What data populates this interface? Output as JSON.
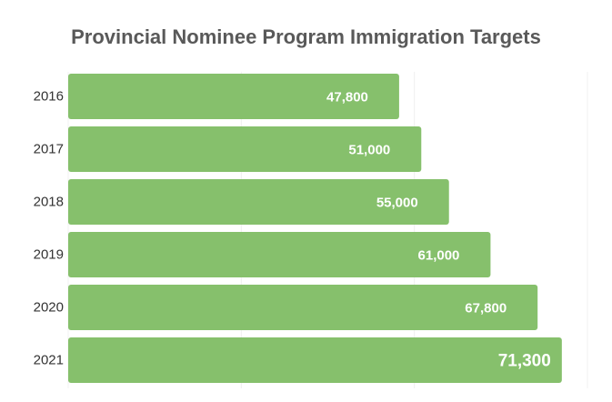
{
  "chart_data": {
    "type": "bar",
    "orientation": "horizontal",
    "title": "Provincial Nominee Program Immigration Targets",
    "categories": [
      "2016",
      "2017",
      "2018",
      "2019",
      "2020",
      "2021"
    ],
    "values": [
      47800,
      51000,
      55000,
      61000,
      67800,
      71300
    ],
    "value_labels": [
      "47,800",
      "51,000",
      "55,000",
      "61,000",
      "67,800",
      "71,300"
    ],
    "xlim": [
      0,
      75000
    ],
    "grid": true,
    "bar_color": "#86c06c",
    "grid_color": "#f0f0f0"
  }
}
